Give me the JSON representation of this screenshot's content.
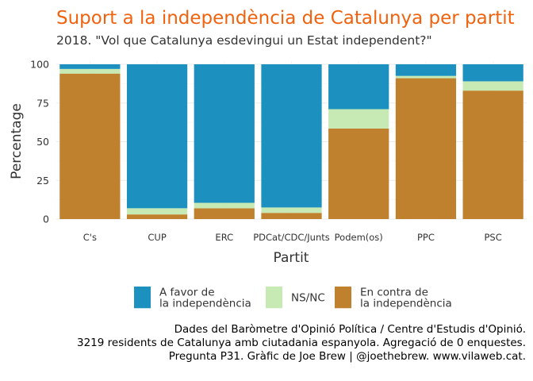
{
  "chart_data": {
    "type": "bar",
    "stacked": true,
    "title": "Suport a la independència de Catalunya per partit",
    "subtitle": "2018. \"Vol que Catalunya esdevingui un Estat independent?\"",
    "xlabel": "Partit",
    "ylabel": "Percentage",
    "ylim": [
      0,
      100
    ],
    "yticks": [
      0,
      25,
      50,
      75,
      100
    ],
    "grid": true,
    "legend_position": "bottom",
    "categories": [
      "C's",
      "CUP",
      "ERC",
      "PDCat/CDC/Junts",
      "Podem(os)",
      "PPC",
      "PSC"
    ],
    "series": [
      {
        "name": "En contra de\nla independència",
        "color": "#bf812d",
        "values": [
          94,
          3,
          7,
          4,
          58.5,
          91,
          83
        ]
      },
      {
        "name": "NS/NC",
        "color": "#c7eab4",
        "values": [
          3,
          4,
          3.5,
          3.5,
          12.5,
          1.5,
          6
        ]
      },
      {
        "name": "A favor de\nla independència",
        "color": "#1c91c0",
        "values": [
          3,
          93,
          89.5,
          92.5,
          29,
          7.5,
          11
        ]
      }
    ],
    "legend_order": [
      2,
      1,
      0
    ],
    "title_color": "#f0620e",
    "caption": [
      "Dades del Baròmetre d'Opinió Política / Centre d'Estudis d'Opinió.",
      "3219 residents de Catalunya amb ciutadania espanyola. Agregació de 0 enquestes.",
      "Pregunta P31. Gràfic de Joe Brew | @joethebrew. www.vilaweb.cat."
    ]
  }
}
